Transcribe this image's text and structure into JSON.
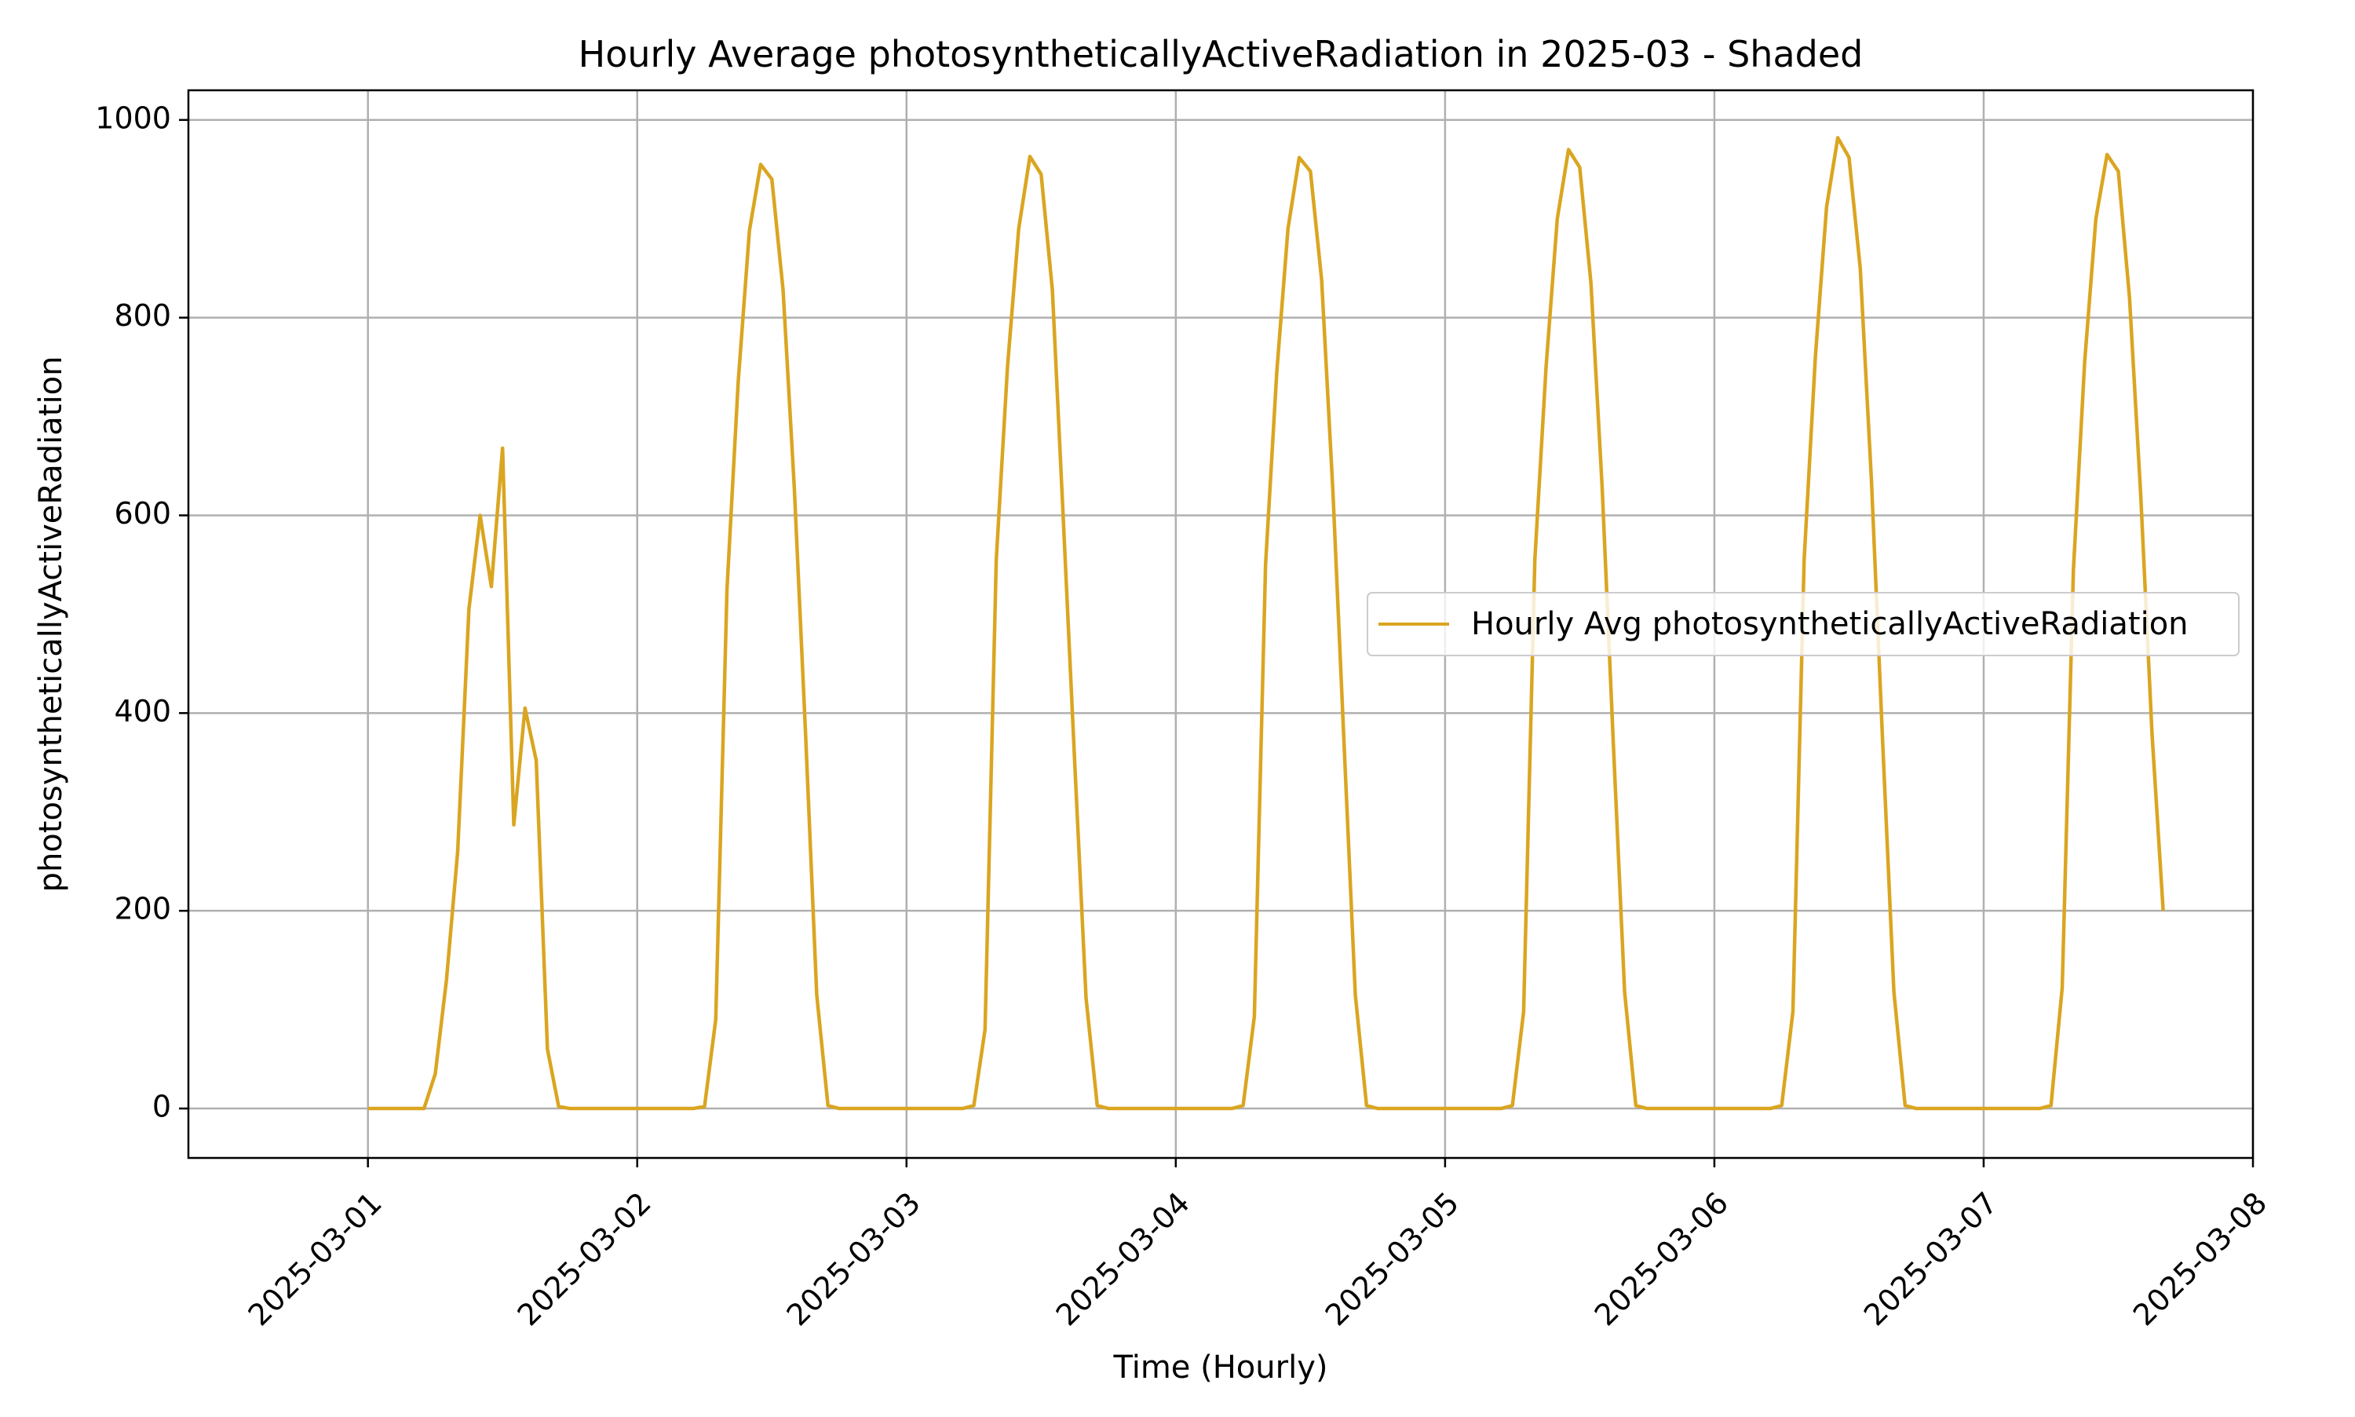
{
  "chart_data": {
    "type": "line",
    "title": "Hourly Average photosyntheticallyActiveRadiation in 2025-03 - Shaded",
    "xlabel": "Time (Hourly)",
    "ylabel": "photosyntheticallyActiveRadiation",
    "x_start": "2025-03-01 00:00",
    "x_step": "1 hour",
    "xlim": [
      "2025-02-28 08:00",
      "2025-03-08 00:00"
    ],
    "ylim": [
      -50,
      1030
    ],
    "x_ticks": [
      "2025-03-01",
      "2025-03-02",
      "2025-03-03",
      "2025-03-04",
      "2025-03-05",
      "2025-03-06",
      "2025-03-07",
      "2025-03-08"
    ],
    "y_ticks": [
      0,
      200,
      400,
      600,
      800,
      1000
    ],
    "grid": true,
    "legend_position": "center-right",
    "series": [
      {
        "name": "Hourly Avg photosyntheticallyActiveRadiation",
        "color": "#DAA520",
        "values": [
          0,
          0,
          0,
          0,
          0,
          0,
          35,
          130,
          260,
          505,
          600,
          528,
          668,
          287,
          405,
          352,
          60,
          2,
          0,
          0,
          0,
          0,
          0,
          0,
          0,
          0,
          0,
          0,
          0,
          0,
          2,
          90,
          525,
          735,
          888,
          955,
          940,
          828,
          628,
          380,
          115,
          3,
          0,
          0,
          0,
          0,
          0,
          0,
          0,
          0,
          0,
          0,
          0,
          0,
          3,
          80,
          555,
          750,
          890,
          963,
          945,
          828,
          590,
          348,
          112,
          3,
          0,
          0,
          0,
          0,
          0,
          0,
          0,
          0,
          0,
          0,
          0,
          0,
          3,
          93,
          550,
          745,
          890,
          962,
          948,
          838,
          625,
          368,
          115,
          3,
          0,
          0,
          0,
          0,
          0,
          0,
          0,
          0,
          0,
          0,
          0,
          0,
          3,
          98,
          555,
          750,
          900,
          970,
          952,
          835,
          628,
          368,
          118,
          3,
          0,
          0,
          0,
          0,
          0,
          0,
          0,
          0,
          0,
          0,
          0,
          0,
          3,
          98,
          555,
          760,
          912,
          982,
          962,
          850,
          635,
          370,
          118,
          3,
          0,
          0,
          0,
          0,
          0,
          0,
          0,
          0,
          0,
          0,
          0,
          0,
          3,
          122,
          545,
          755,
          900,
          965,
          948,
          820,
          620,
          380,
          200
        ]
      }
    ]
  }
}
